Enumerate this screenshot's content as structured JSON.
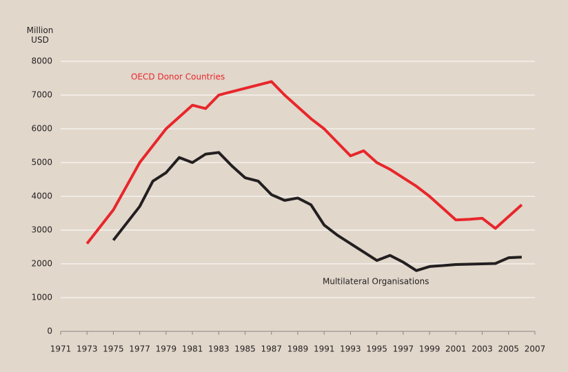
{
  "chart_data": {
    "type": "line",
    "y_label": "Million USD",
    "x": [
      1973,
      1974,
      1975,
      1976,
      1977,
      1978,
      1979,
      1980,
      1981,
      1982,
      1983,
      1984,
      1985,
      1986,
      1987,
      1988,
      1989,
      1990,
      1991,
      1992,
      1993,
      1994,
      1995,
      1996,
      1997,
      1998,
      1999,
      2000,
      2001,
      2002,
      2003,
      2004,
      2005,
      2006
    ],
    "series": [
      {
        "name": "OECD Donor Countries",
        "color": "#e8262b",
        "values": [
          2600,
          3100,
          3600,
          4300,
          5000,
          5500,
          6000,
          6350,
          6700,
          6600,
          7000,
          7100,
          7200,
          7300,
          7400,
          7000,
          6650,
          6300,
          6000,
          5600,
          5200,
          5350,
          5000,
          4800,
          4550,
          4300,
          4000,
          3650,
          3300,
          3320,
          3350,
          3050,
          3400,
          3750
        ]
      },
      {
        "name": "Multilateral Organisations",
        "color": "#231f20",
        "values": [
          null,
          null,
          2700,
          3200,
          3700,
          4450,
          4700,
          5150,
          5000,
          5250,
          5300,
          4900,
          4550,
          4450,
          4050,
          3880,
          3950,
          3750,
          3150,
          2850,
          2600,
          2350,
          2100,
          2250,
          2050,
          1800,
          1920,
          1950,
          1980,
          1990,
          2000,
          2010,
          2180,
          2200
        ]
      }
    ],
    "xlim": [
      1971,
      2007
    ],
    "xticks": [
      1971,
      1973,
      1975,
      1977,
      1979,
      1981,
      1983,
      1985,
      1987,
      1989,
      1991,
      1993,
      1995,
      1997,
      1999,
      2001,
      2003,
      2005,
      2007
    ],
    "ylim": [
      0,
      8000
    ],
    "yticks": [
      0,
      1000,
      2000,
      3000,
      4000,
      5000,
      6000,
      7000,
      8000
    ],
    "grid": true,
    "background": "#e1d7cb"
  }
}
